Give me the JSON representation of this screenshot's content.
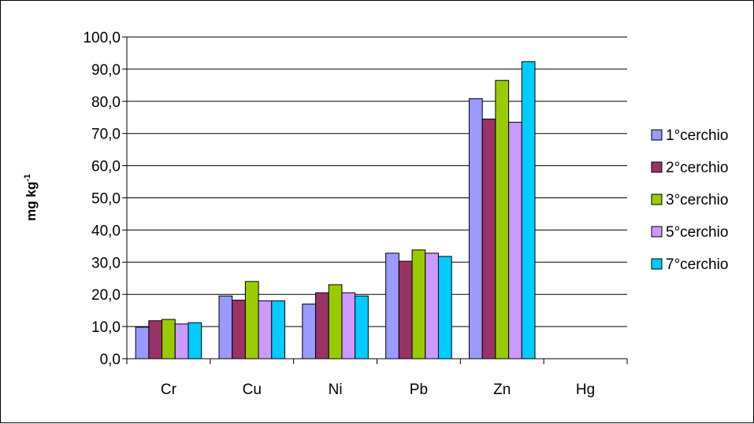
{
  "chart_data": {
    "type": "bar",
    "ylabel": "mg kg",
    "ylabel_superscript": "-1",
    "categories": [
      "Cr",
      "Cu",
      "Ni",
      "Pb",
      "Zn",
      "Hg"
    ],
    "ylim": [
      0,
      100
    ],
    "yticks": [
      "0,0",
      "10,0",
      "20,0",
      "30,0",
      "40,0",
      "50,0",
      "60,0",
      "70,0",
      "80,0",
      "90,0",
      "100,0"
    ],
    "grid": true,
    "legend_position": "right",
    "series": [
      {
        "name": "1°cerchio",
        "color": "#9999ff",
        "values": [
          9.8,
          19.5,
          17.0,
          32.8,
          80.8,
          0
        ]
      },
      {
        "name": "2°cerchio",
        "color": "#993366",
        "values": [
          11.8,
          18.2,
          20.5,
          30.3,
          74.5,
          0
        ]
      },
      {
        "name": "3°cerchio",
        "color": "#99cc00",
        "values": [
          12.2,
          24.0,
          23.0,
          33.8,
          86.5,
          0
        ]
      },
      {
        "name": "5°cerchio",
        "color": "#cc99ff",
        "values": [
          10.8,
          18.0,
          20.5,
          32.8,
          73.5,
          0
        ]
      },
      {
        "name": "7°cerchio",
        "color": "#00ccff",
        "values": [
          11.2,
          18.0,
          19.5,
          31.8,
          92.3,
          0
        ]
      }
    ]
  }
}
